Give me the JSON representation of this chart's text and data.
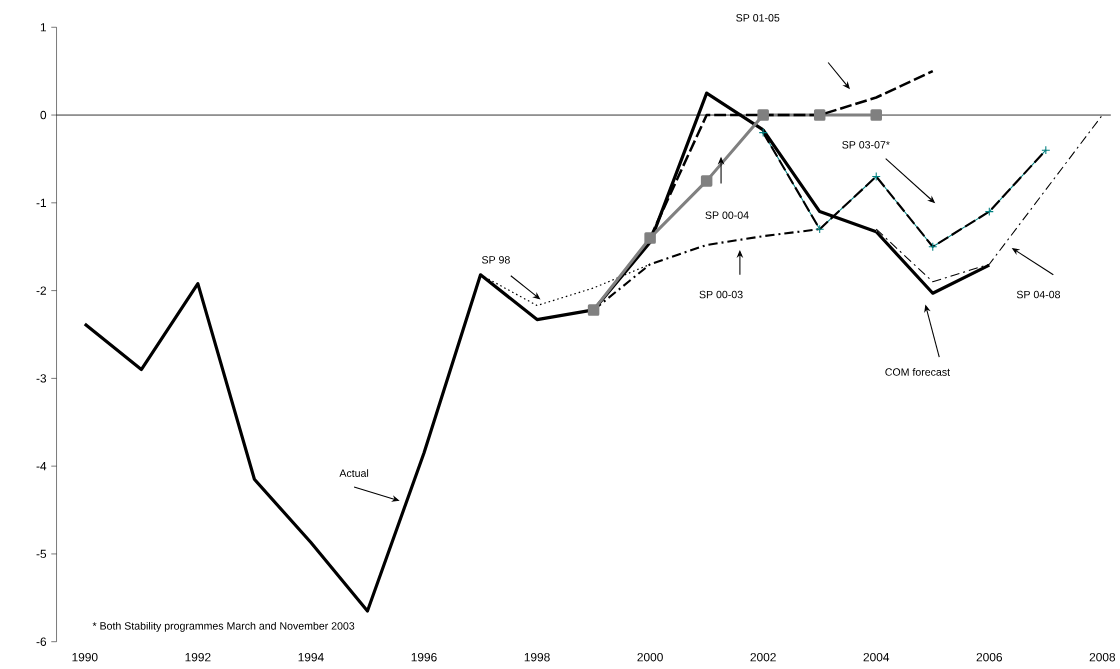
{
  "chart_data": {
    "type": "line",
    "xlim": [
      1989.5,
      2008.15
    ],
    "xticks": [
      1990,
      1992,
      1994,
      1996,
      1998,
      2000,
      2002,
      2004,
      2006,
      2008
    ],
    "ylim": [
      -6,
      1
    ],
    "yticks": [
      -6,
      -5,
      -4,
      -3,
      -2,
      -1,
      0,
      1
    ],
    "ref_lines": [
      {
        "axis": "y",
        "value": 0,
        "color": "#000000"
      }
    ],
    "series": [
      {
        "color": "#000000",
        "line_style": "solid",
        "marker": "none",
        "x": [
          1990,
          1991,
          1992,
          1993,
          1994,
          1995,
          1996,
          1997,
          1998,
          1999,
          2000,
          2001,
          2002,
          2003,
          2004
        ],
        "values": [
          -2.38,
          -2.9,
          -1.92,
          -4.15,
          -4.87,
          -5.65,
          -3.85,
          -1.82,
          -2.33,
          -2.22,
          -1.45,
          0.25,
          -0.17,
          -1.1,
          -1.33
        ]
      },
      {
        "color": "#000000",
        "line_style": "solid",
        "marker": "none",
        "x": [
          2004,
          2005,
          2006
        ],
        "values": [
          -1.33,
          -2.03,
          -1.71
        ]
      },
      {
        "color": "#000000",
        "line_style": "dotted",
        "marker": "none",
        "x": [
          1997,
          1998,
          1999,
          2000
        ],
        "values": [
          -1.82,
          -2.17,
          -1.97,
          -1.7
        ]
      },
      {
        "color": "#000000",
        "line_style": "dashdot",
        "marker": "none",
        "x": [
          1999,
          2000,
          2001,
          2002,
          2003
        ],
        "values": [
          -2.22,
          -1.7,
          -1.48,
          -1.38,
          -1.3
        ]
      },
      {
        "color": "#808080",
        "line_style": "solid",
        "marker": "square",
        "x": [
          1999,
          2000,
          2001,
          2002,
          2003,
          2004
        ],
        "values": [
          -2.22,
          -1.4,
          -0.75,
          0,
          0,
          0
        ]
      },
      {
        "color": "#000000",
        "line_style": "dashed",
        "marker": "none",
        "x": [
          2000,
          2001,
          2002,
          2003,
          2004,
          2005
        ],
        "values": [
          -1.4,
          0,
          0,
          0,
          0.2,
          0.5
        ]
      },
      {
        "color": "#008080",
        "line_style": "solid",
        "marker": "cross",
        "x": [
          2002,
          2003,
          2004,
          2005,
          2006,
          2007
        ],
        "values": [
          -0.2,
          -1.3,
          -0.7,
          -1.5,
          -1.1,
          -0.4
        ]
      },
      {
        "color": "#000000",
        "line_style": "dashed",
        "marker": "none",
        "x": [
          2002,
          2003,
          2004,
          2005,
          2006,
          2007
        ],
        "values": [
          -0.2,
          -1.3,
          -0.7,
          -1.5,
          -1.1,
          -0.4
        ]
      },
      {
        "color": "#000000",
        "line_style": "dashdot",
        "marker": "none",
        "x": [
          2004,
          2005,
          2006,
          2008
        ],
        "values": [
          -1.3,
          -1.9,
          -1.7,
          0
        ]
      }
    ],
    "annotations": [
      "Actual",
      "SP 98",
      "SP 00-04",
      "SP 00-03",
      "SP 01-05",
      "SP 03-07*",
      "SP 04-08",
      "COM forecast",
      "* Both Stability programmes March and November 2003"
    ]
  }
}
